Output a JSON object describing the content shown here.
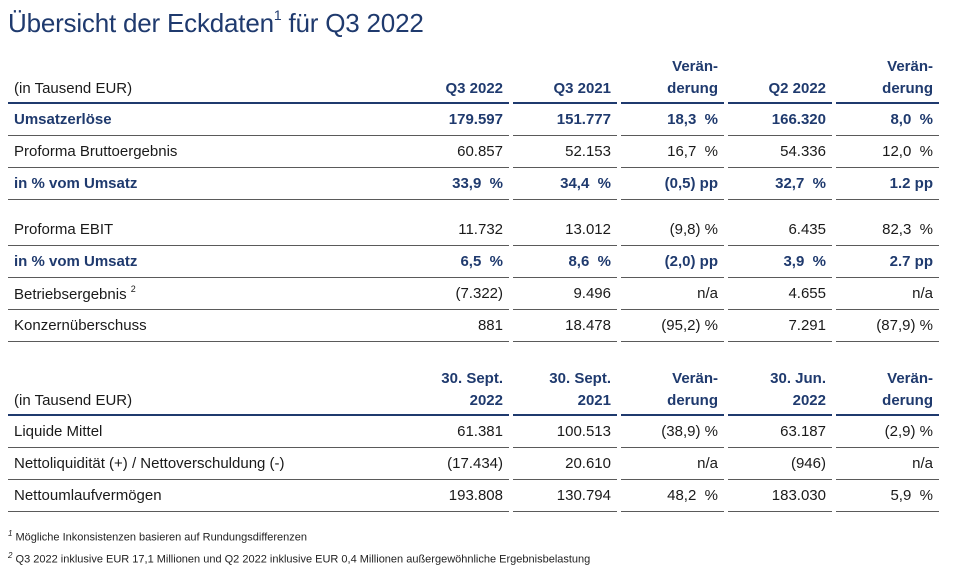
{
  "title": {
    "text": "Übersicht der Eckdaten",
    "sup": "1",
    "suffix": " für Q3 2022"
  },
  "table1": {
    "header": {
      "label": "(in Tausend EUR)",
      "c1": [
        "Q3 2022"
      ],
      "c2": [
        "Q3 2021"
      ],
      "c3": [
        "Verän-",
        "derung"
      ],
      "c4": [
        "Q2 2022"
      ],
      "c5": [
        "Verän-",
        "derung"
      ]
    },
    "rows": [
      {
        "label": "Umsatzerlöse",
        "v": [
          "179.597",
          "151.777",
          "18,3  %",
          "166.320",
          "8,0  %"
        ],
        "bold": true
      },
      {
        "label": "Proforma Bruttoergebnis",
        "v": [
          "60.857",
          "52.153",
          "16,7  %",
          "54.336",
          "12,0  %"
        ]
      },
      {
        "label": "in % vom Umsatz",
        "v": [
          "33,9  %",
          "34,4  %",
          "(0,5) pp",
          "32,7  %",
          "1.2 pp"
        ],
        "bold": true
      },
      {
        "label": "Proforma EBIT",
        "v": [
          "11.732",
          "13.012",
          "(9,8) %",
          "6.435",
          "82,3  %"
        ],
        "spaceBefore": true
      },
      {
        "label": "in % vom Umsatz",
        "v": [
          "6,5  %",
          "8,6  %",
          "(2,0) pp",
          "3,9  %",
          "2.7 pp"
        ],
        "bold": true
      },
      {
        "label": "Betriebsergebnis",
        "sup": "2",
        "v": [
          "(7.322)",
          "9.496",
          "n/a",
          "4.655",
          "n/a"
        ]
      },
      {
        "label": "Konzernüberschuss",
        "v": [
          "881",
          "18.478",
          "(95,2) %",
          "7.291",
          "(87,9) %"
        ]
      }
    ]
  },
  "table2": {
    "header": {
      "label": "(in Tausend EUR)",
      "c1": [
        "30. Sept.",
        "2022"
      ],
      "c2": [
        "30. Sept.",
        "2021"
      ],
      "c3": [
        "Verän-",
        "derung"
      ],
      "c4": [
        "30. Jun.",
        "2022"
      ],
      "c5": [
        "Verän-",
        "derung"
      ]
    },
    "rows": [
      {
        "label": "Liquide Mittel",
        "v": [
          "61.381",
          "100.513",
          "(38,9) %",
          "63.187",
          "(2,9) %"
        ]
      },
      {
        "label": "Nettoliquidität (+) / Nettoverschuldung (-)",
        "v": [
          "(17.434)",
          "20.610",
          "n/a",
          "(946)",
          "n/a"
        ]
      },
      {
        "label": "Nettoumlaufvermögen",
        "v": [
          "193.808",
          "130.794",
          "48,2  %",
          "183.030",
          "5,9  %"
        ]
      }
    ]
  },
  "footnotes": [
    {
      "num": "1",
      "text": " Mögliche Inkonsistenzen basieren auf Rundungsdifferenzen"
    },
    {
      "num": "2",
      "text": " Q3 2022 inklusive EUR  17,1 Millionen und Q2 2022 inklusive EUR  0,4 Millionen außergewöhnliche Ergebnisbelastung"
    }
  ]
}
